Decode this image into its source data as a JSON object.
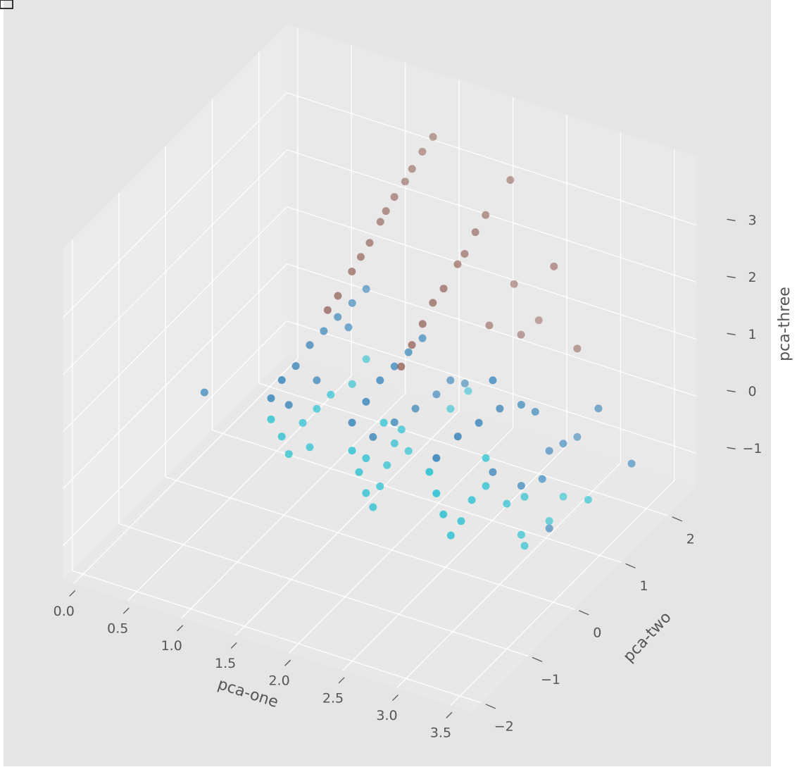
{
  "chart_data": {
    "type": "scatter3d",
    "xlabel": "pca-one",
    "ylabel": "pca-two",
    "zlabel": "pca-three",
    "xlim": [
      -0.1,
      3.7
    ],
    "ylim": [
      -2.2,
      2.6
    ],
    "zlim": [
      -1.6,
      4.2
    ],
    "xticks": [
      {
        "value": 0,
        "label": "0.0"
      },
      0.5,
      {
        "value": 1,
        "label": "1.0"
      },
      1.5,
      {
        "value": 2,
        "label": "2.0"
      },
      2.5,
      {
        "value": 3,
        "label": "3.0"
      },
      3.5
    ],
    "yticks": [
      {
        "value": -2,
        "label": "−2"
      },
      {
        "value": -1,
        "label": "−1"
      },
      0,
      1,
      2
    ],
    "zticks": [
      {
        "value": -1,
        "label": "−1"
      },
      0,
      1,
      2,
      3
    ],
    "grid": true,
    "series": [
      {
        "color": "#1f77b4",
        "x": [
          1.2,
          1.2,
          1.2,
          1.2,
          1.2,
          1.2,
          1.2,
          1.2,
          1.2,
          1.2,
          1.2,
          0.1,
          2.0,
          2.0,
          2.0,
          2.0,
          2.0,
          2.0,
          2.0,
          2.0,
          2.0,
          2.0,
          2.0,
          2.0,
          3.0,
          3.0,
          3.0,
          3.0,
          3.0,
          3.0,
          3.0,
          3.0,
          3.0,
          3.0,
          3.0,
          3.4,
          3.6,
          3.0,
          3.0,
          3.0
        ],
        "y": [
          -0.74,
          -0.51,
          -0.21,
          0.09,
          0.39,
          0.69,
          1.0,
          1.3,
          -0.36,
          0.24,
          0.92,
          0.37,
          -0.85,
          -0.55,
          -0.25,
          0.06,
          0.36,
          0.66,
          -0.4,
          0.06,
          0.51,
          0.96,
          1.26,
          1.57,
          -1.35,
          -0.89,
          -0.44,
          0.01,
          0.47,
          0.77,
          -0.14,
          0.47,
          1.07,
          1.37,
          1.67,
          1.2,
          1.45,
          1.07,
          0.92,
          -0.14
        ],
        "z": [
          1.18,
          1.31,
          1.31,
          1.43,
          1.43,
          1.43,
          1.42,
          1.42,
          0.75,
          0.69,
          1.06,
          -0.3,
          1.33,
          1.45,
          1.58,
          1.57,
          1.57,
          1.57,
          0.71,
          0.59,
          0.46,
          0.34,
          0.34,
          0.03,
          1.73,
          1.73,
          1.6,
          1.48,
          1.17,
          0.8,
          0.49,
          -0.25,
          -0.13,
          -0.25,
          -0.38,
          0.75,
          -0.3,
          -1.49,
          -0.5,
          2.1
        ]
      },
      {
        "color": "#17becf",
        "x": [
          1.2,
          1.2,
          1.2,
          1.2,
          1.2,
          1.2,
          1.2,
          1.2,
          1.2,
          2.0,
          2.0,
          2.0,
          2.0,
          2.0,
          2.0,
          2.0,
          2.0,
          2.0,
          2.0,
          2.0,
          2.0,
          2.0,
          3.0,
          3.0,
          3.0,
          3.0,
          3.0,
          3.0,
          3.0,
          3.0,
          3.0,
          3.0,
          3.0,
          3.0,
          3.4,
          3.0,
          3.0
        ],
        "y": [
          -0.74,
          -0.51,
          -0.36,
          -0.06,
          0.24,
          0.54,
          0.09,
          1.0,
          1.3,
          -0.85,
          -0.7,
          -0.55,
          -0.4,
          -0.25,
          -0.1,
          0.06,
          0.21,
          -0.55,
          -0.17,
          0.36,
          1.26,
          1.64,
          -1.5,
          -1.35,
          -1.2,
          -1.04,
          -0.82,
          -0.59,
          -0.29,
          0.16,
          0.54,
          0.47,
          0.54,
          1.37,
          0.98,
          1.07,
          -0.29
        ],
        "z": [
          0.81,
          0.32,
          -0.11,
          0.19,
          0.19,
          0.19,
          -0.36,
          0.0,
          0.19,
          0.84,
          0.34,
          -0.15,
          -0.52,
          -0.28,
          -0.03,
          0.22,
          0.34,
          0.46,
          0.77,
          -0.16,
          -0.16,
          -0.16,
          1.61,
          1.11,
          0.62,
          0.12,
          0.19,
          0.37,
          0.37,
          -0.31,
          -0.5,
          -1.11,
          -1.36,
          -1.18,
          -0.67,
          -1.36,
          0.86
        ]
      },
      {
        "color": "#8c564b",
        "x": [
          1.6,
          1.6,
          1.6,
          1.6,
          1.6,
          1.6,
          1.6,
          1.6,
          1.6,
          1.6,
          1.6,
          1.6,
          2.4,
          2.4,
          2.4,
          2.4,
          2.4,
          2.4,
          2.4,
          2.4,
          2.4,
          2.4,
          2.4,
          2.4,
          2.4,
          3.0,
          3.0,
          2.4
        ],
        "y": [
          0.07,
          0.26,
          0.45,
          0.68,
          0.8,
          0.98,
          1.21,
          1.36,
          1.58,
          1.81,
          -0.23,
          -0.45,
          -0.72,
          -0.49,
          -0.26,
          -0.04,
          0.19,
          0.49,
          0.64,
          0.87,
          1.09,
          1.62,
          1.7,
          1.17,
          2.23,
          1.67,
          1.17,
          1.85
        ],
        "z": [
          2.98,
          3.08,
          3.17,
          3.35,
          3.44,
          3.54,
          3.62,
          3.72,
          3.84,
          3.91,
          2.8,
          2.73,
          2.45,
          2.64,
          2.82,
          3.01,
          3.07,
          3.25,
          3.31,
          3.5,
          3.62,
          3.8,
          1.91,
          1.62,
          0.84,
          1.17,
          3.02,
          0.9
        ]
      }
    ]
  }
}
